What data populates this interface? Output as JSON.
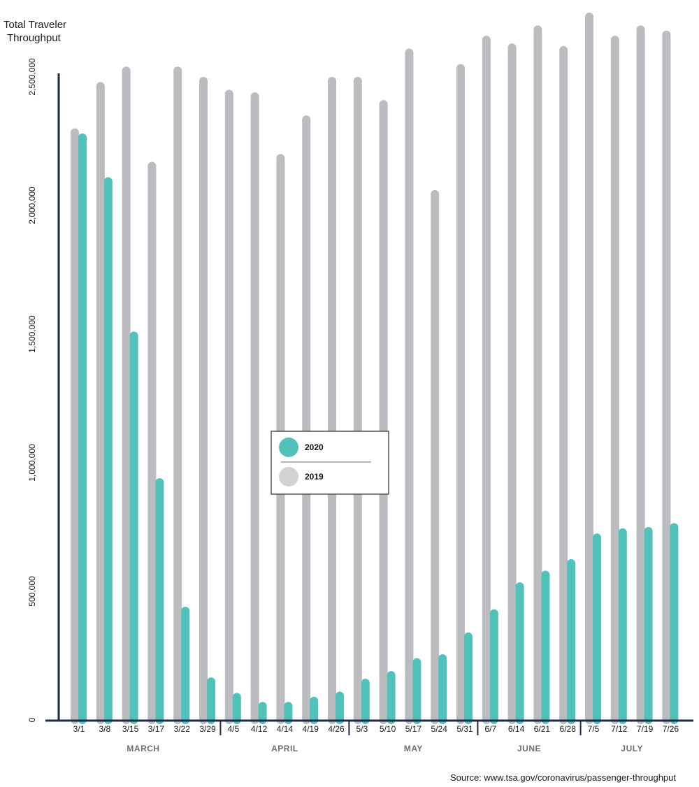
{
  "chart_data": {
    "type": "bar",
    "ylabel": "Total Traveler Throughput",
    "ylim": [
      0,
      2500000
    ],
    "y_ticks": [
      {
        "value": 2500000,
        "label": "2,500,000"
      },
      {
        "value": 2000000,
        "label": "2,000,000"
      },
      {
        "value": 1500000,
        "label": "1,500,000"
      },
      {
        "value": 1000000,
        "label": "1,000,000"
      },
      {
        "value": 500000,
        "label": "500,000"
      },
      {
        "value": 0,
        "label": "0"
      }
    ],
    "categories": [
      "3/1",
      "3/8",
      "3/15",
      "3/17",
      "3/22",
      "3/29",
      "4/5",
      "4/12",
      "4/14",
      "4/19",
      "4/26",
      "5/3",
      "5/10",
      "5/17",
      "5/24",
      "5/31",
      "6/7",
      "6/14",
      "6/21",
      "6/28",
      "7/5",
      "7/12",
      "7/19",
      "7/26"
    ],
    "months": [
      {
        "label": "MARCH",
        "start": 0,
        "end": 5
      },
      {
        "label": "APRIL",
        "start": 6,
        "end": 10
      },
      {
        "label": "MAY",
        "start": 11,
        "end": 15
      },
      {
        "label": "JUNE",
        "start": 16,
        "end": 19
      },
      {
        "label": "JULY",
        "start": 20,
        "end": 23
      }
    ],
    "series": [
      {
        "name": "2019",
        "color": "#bbbcbf",
        "values": [
          2300000,
          2480000,
          2540000,
          2170000,
          2540000,
          2500000,
          2450000,
          2440000,
          2200000,
          2350000,
          2500000,
          2500000,
          2410000,
          2610000,
          2060000,
          2550000,
          2660000,
          2630000,
          2700000,
          2620000,
          2750000,
          2660000,
          2700000,
          2680000
        ]
      },
      {
        "name": "2020",
        "color": "#50c2ba",
        "values": [
          2280000,
          2110000,
          1510000,
          940000,
          440000,
          165000,
          105000,
          70000,
          70000,
          90000,
          110000,
          160000,
          190000,
          240000,
          255000,
          340000,
          430000,
          535000,
          580000,
          625000,
          725000,
          745000,
          750000,
          765000
        ]
      }
    ],
    "legend": {
      "position": "center",
      "items": [
        {
          "label": "2020",
          "color": "#50c2ba"
        },
        {
          "label": "2019",
          "color": "#d1d2d4"
        }
      ]
    },
    "axis_color": "#1b2a4a",
    "grid": false,
    "source": "Source: www.tsa.gov/coronavirus/passenger-throughput"
  }
}
